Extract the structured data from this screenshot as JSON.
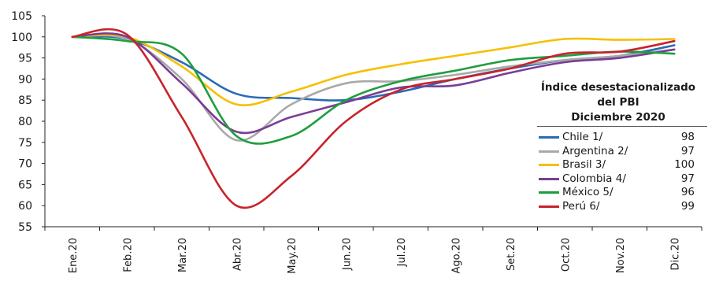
{
  "chart_data": {
    "type": "line",
    "categories": [
      "Ene.20",
      "Feb.20",
      "Mar.20",
      "Abr.20",
      "May.20",
      "Jun.20",
      "Jul.20",
      "Ago.20",
      "Set.20",
      "Oct.20",
      "Nov.20",
      "Dic.20"
    ],
    "ylim": [
      55,
      105
    ],
    "yticks": [
      55,
      60,
      65,
      70,
      75,
      80,
      85,
      90,
      95,
      100,
      105
    ],
    "grid": false,
    "legend_position": "right",
    "legend_title": [
      "Índice desestacionalizado",
      "del PBI",
      "Diciembre 2020"
    ],
    "series": [
      {
        "name": "Chile 1/",
        "color": "#2a6ab5",
        "legend_value": "98",
        "values": [
          100,
          99.5,
          94,
          86.5,
          85.5,
          85,
          87,
          90,
          92.5,
          94.5,
          95.5,
          98
        ]
      },
      {
        "name": "Argentina 2/",
        "color": "#a9a9a9",
        "legend_value": "97",
        "values": [
          100,
          99.5,
          90,
          75.5,
          84,
          89,
          89.5,
          91,
          93,
          94.5,
          95.5,
          97
        ]
      },
      {
        "name": "Brasil 3/",
        "color": "#f5c000",
        "legend_value": "100",
        "values": [
          100,
          100,
          93,
          84,
          87,
          91,
          93.5,
          95.5,
          97.5,
          99.5,
          99.3,
          99.5
        ]
      },
      {
        "name": "Colombia 4/",
        "color": "#7a3d96",
        "legend_value": "97",
        "values": [
          100,
          100,
          89,
          77.5,
          81,
          84.5,
          88,
          88.5,
          91.5,
          94,
          95,
          97
        ]
      },
      {
        "name": "México 5/",
        "color": "#1e9e3e",
        "legend_value": "96",
        "values": [
          100,
          99,
          96,
          76.5,
          76.5,
          85,
          89.5,
          92,
          94.5,
          95.5,
          96.5,
          96
        ]
      },
      {
        "name": "Perú 6/",
        "color": "#c8232a",
        "legend_value": "99",
        "values": [
          100,
          100.5,
          81,
          60,
          67,
          80,
          87.5,
          90,
          92.5,
          96,
          96.5,
          99
        ]
      }
    ]
  }
}
